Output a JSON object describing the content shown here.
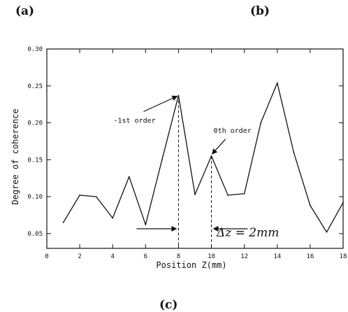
{
  "panels": {
    "a": "(a)",
    "b": "(b)",
    "c": "(c)"
  },
  "chart_data": {
    "type": "line",
    "xlabel": "Position Z(mm)",
    "ylabel": "Degree of coherence",
    "xlim": [
      0,
      18
    ],
    "ylim": [
      0.03,
      0.3
    ],
    "x_ticks": [
      0,
      2,
      4,
      6,
      8,
      10,
      12,
      14,
      16,
      18
    ],
    "y_ticks": [
      0.05,
      0.1,
      0.15,
      0.2,
      0.25,
      0.3
    ],
    "x_tick_labels": [
      "0",
      "2",
      "4",
      "6",
      "8",
      "10",
      "12",
      "14",
      "16",
      "18"
    ],
    "y_tick_labels": [
      "0.05",
      "0.10",
      "0.15",
      "0.20",
      "0.25",
      "0.30"
    ],
    "series": [
      {
        "x": [
          1,
          2,
          3,
          4,
          5,
          6,
          7,
          8,
          9,
          10,
          11,
          12,
          13,
          14,
          15,
          16,
          17,
          18
        ],
        "values": [
          0.065,
          0.102,
          0.1,
          0.071,
          0.127,
          0.062,
          0.15,
          0.237,
          0.103,
          0.155,
          0.102,
          0.104,
          0.2,
          0.254,
          0.16,
          0.088,
          0.052,
          0.092
        ]
      }
    ],
    "annotations": [
      {
        "text": "-1st order",
        "target_x": 8,
        "target_y": 0.237
      },
      {
        "text": "0th order",
        "target_x": 10,
        "target_y": 0.155
      }
    ],
    "delta_label": "Δz = 2mm",
    "marker_lines_x": [
      8,
      10
    ]
  }
}
